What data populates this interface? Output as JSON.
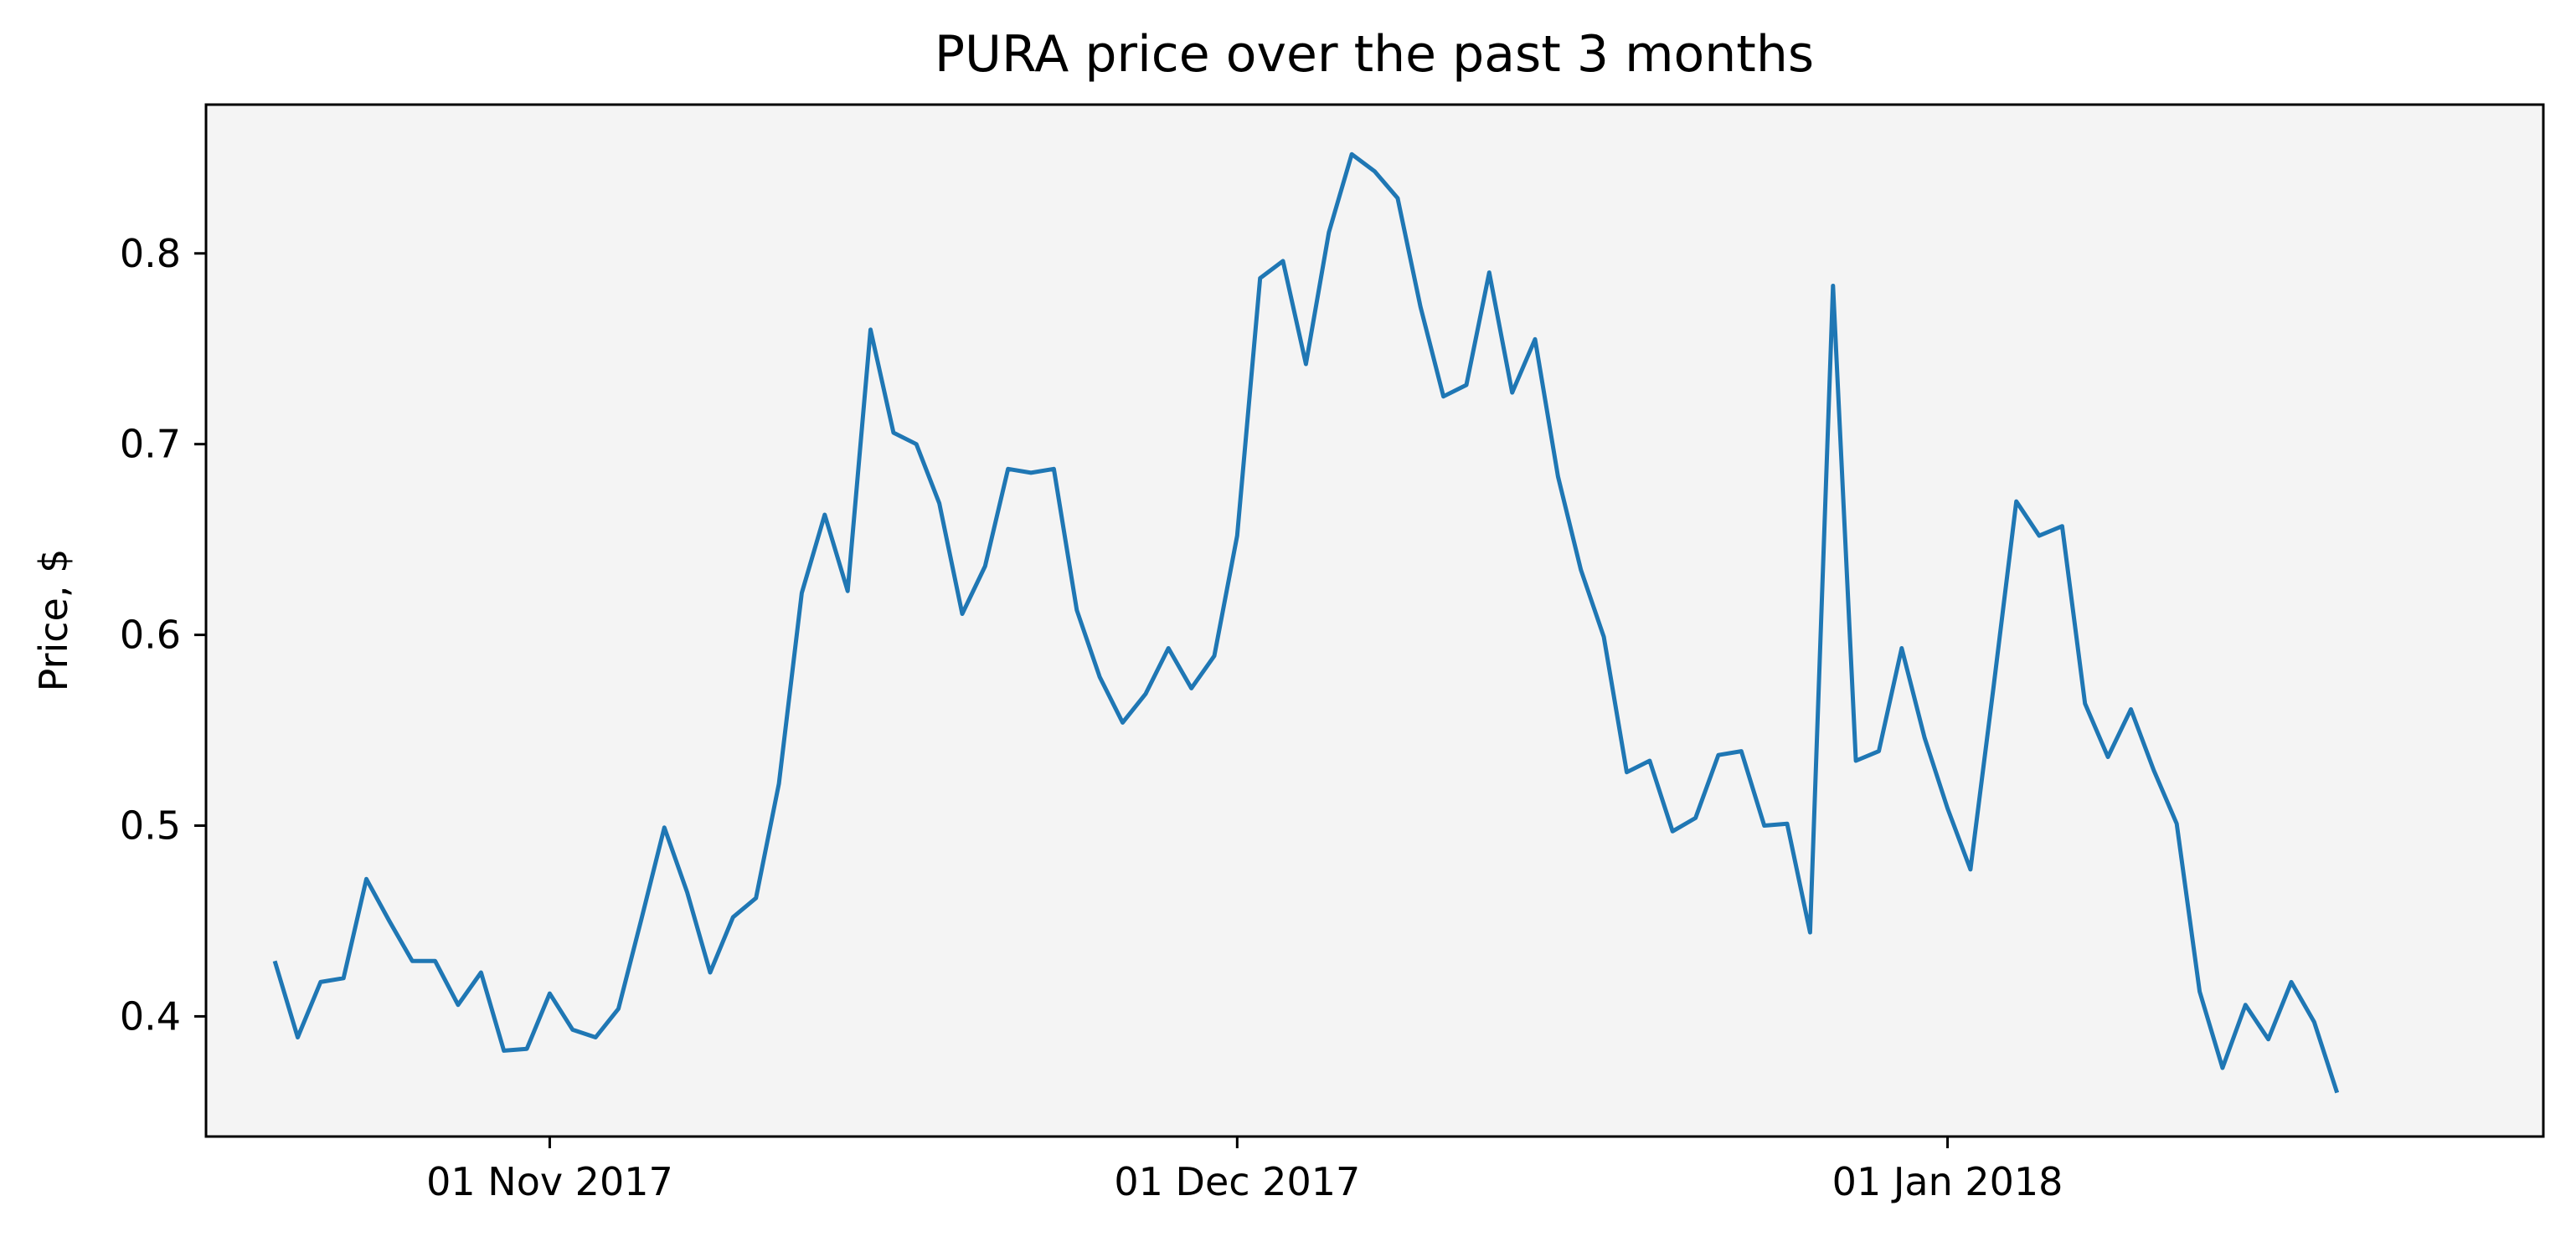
{
  "chart_data": {
    "type": "line",
    "title": "PURA price over the past 3 months",
    "xlabel": "",
    "ylabel": "Price, $",
    "x_start": "2017-10-20",
    "x_step_days": 1,
    "xlim": [
      "2017-10-17",
      "2018-01-27"
    ],
    "ylim": [
      0.337,
      0.878
    ],
    "x_ticks": [
      {
        "date": "2017-11-01",
        "label": "01 Nov 2017"
      },
      {
        "date": "2017-12-01",
        "label": "01 Dec 2017"
      },
      {
        "date": "2018-01-01",
        "label": "01 Jan 2018"
      }
    ],
    "y_ticks": [
      {
        "value": 0.4,
        "label": "0.4"
      },
      {
        "value": 0.5,
        "label": "0.5"
      },
      {
        "value": 0.6,
        "label": "0.6"
      },
      {
        "value": 0.7,
        "label": "0.7"
      },
      {
        "value": 0.8,
        "label": "0.8"
      }
    ],
    "grid": false,
    "series": [
      {
        "color": "#1f77b4",
        "values": [
          0.429,
          0.389,
          0.418,
          0.42,
          0.472,
          0.45,
          0.429,
          0.429,
          0.406,
          0.423,
          0.382,
          0.383,
          0.412,
          0.393,
          0.389,
          0.404,
          0.451,
          0.499,
          0.465,
          0.423,
          0.452,
          0.462,
          0.522,
          0.622,
          0.663,
          0.623,
          0.76,
          0.706,
          0.7,
          0.669,
          0.611,
          0.636,
          0.687,
          0.685,
          0.687,
          0.613,
          0.578,
          0.554,
          0.569,
          0.593,
          0.572,
          0.589,
          0.652,
          0.787,
          0.796,
          0.742,
          0.811,
          0.852,
          0.843,
          0.829,
          0.772,
          0.725,
          0.731,
          0.79,
          0.727,
          0.755,
          0.683,
          0.634,
          0.599,
          0.528,
          0.534,
          0.497,
          0.504,
          0.537,
          0.539,
          0.5,
          0.501,
          0.444,
          0.783,
          0.534,
          0.539,
          0.593,
          0.546,
          0.509,
          0.477,
          0.572,
          0.67,
          0.652,
          0.657,
          0.564,
          0.536,
          0.561,
          0.529,
          0.501,
          0.413,
          0.373,
          0.406,
          0.388,
          0.418,
          0.397,
          0.36
        ]
      }
    ],
    "background_color": "#f4f4f4",
    "line_color": "#1f77b4"
  }
}
